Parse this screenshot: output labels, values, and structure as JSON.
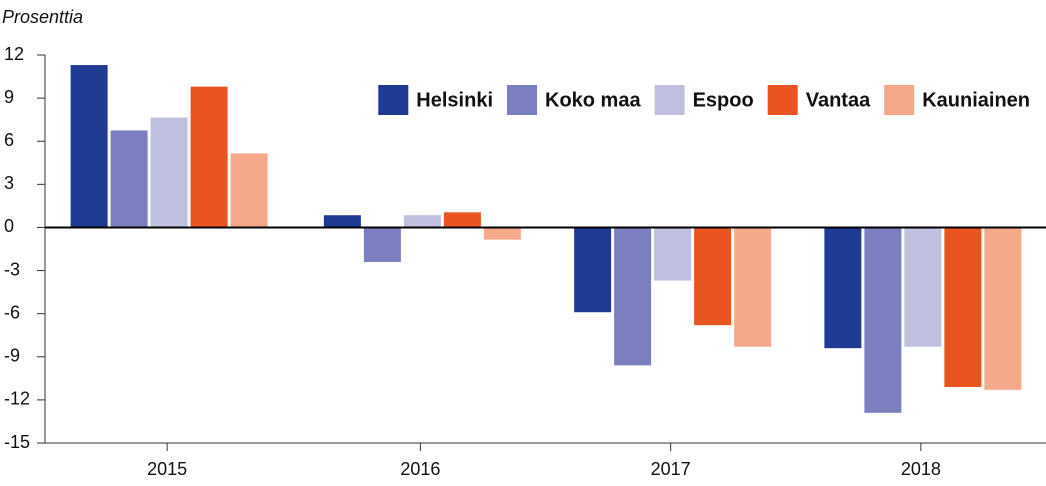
{
  "chart_data": {
    "type": "bar",
    "y_label": "Prosenttia",
    "categories": [
      "2015",
      "2016",
      "2017",
      "2018"
    ],
    "series": [
      {
        "name": "Helsinki",
        "color": "#1f3a93",
        "values": [
          11.3,
          0.85,
          -5.9,
          -8.4
        ]
      },
      {
        "name": "Koko maa",
        "color": "#7b7fbf",
        "values": [
          6.75,
          -2.4,
          -9.6,
          -12.9
        ]
      },
      {
        "name": "Espoo",
        "color": "#bfc0e0",
        "values": [
          7.65,
          0.85,
          -3.7,
          -8.3
        ]
      },
      {
        "name": "Vantaa",
        "color": "#e95420",
        "values": [
          9.8,
          1.05,
          -6.8,
          -11.1
        ]
      },
      {
        "name": "Kauniainen",
        "color": "#f5a98a",
        "values": [
          5.15,
          -0.85,
          -8.3,
          -11.3
        ]
      }
    ],
    "ylim": [
      -15,
      12
    ],
    "yticks": [
      -15,
      -12,
      -9,
      -6,
      -3,
      0,
      3,
      6,
      9,
      12
    ],
    "legend": "top-right"
  }
}
